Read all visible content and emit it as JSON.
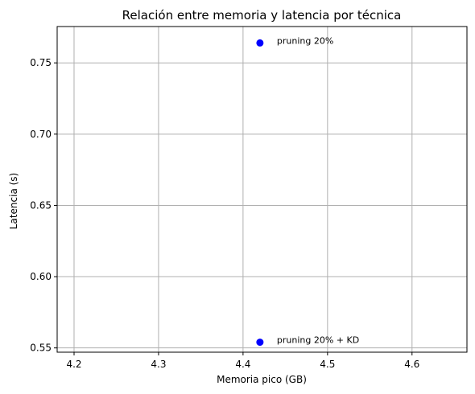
{
  "chart_data": {
    "type": "scatter",
    "title": "Relación entre memoria y latencia por técnica",
    "xlabel": "Memoria pico (GB)",
    "ylabel": "Latencia (s)",
    "xlim": [
      4.18,
      4.665
    ],
    "ylim": [
      0.547,
      0.7755
    ],
    "x_ticks": [
      4.2,
      4.3,
      4.4,
      4.5,
      4.6
    ],
    "x_tick_labels": [
      "4.2",
      "4.3",
      "4.4",
      "4.5",
      "4.6"
    ],
    "y_ticks": [
      0.55,
      0.6,
      0.65,
      0.7,
      0.75
    ],
    "y_tick_labels": [
      "0.55",
      "0.60",
      "0.65",
      "0.70",
      "0.75"
    ],
    "grid": true,
    "marker_color": "#0000ff",
    "points": [
      {
        "x": 4.42,
        "y": 0.764,
        "label": "pruning 20%"
      },
      {
        "x": 4.42,
        "y": 0.554,
        "label": "pruning 20% + KD"
      }
    ]
  }
}
